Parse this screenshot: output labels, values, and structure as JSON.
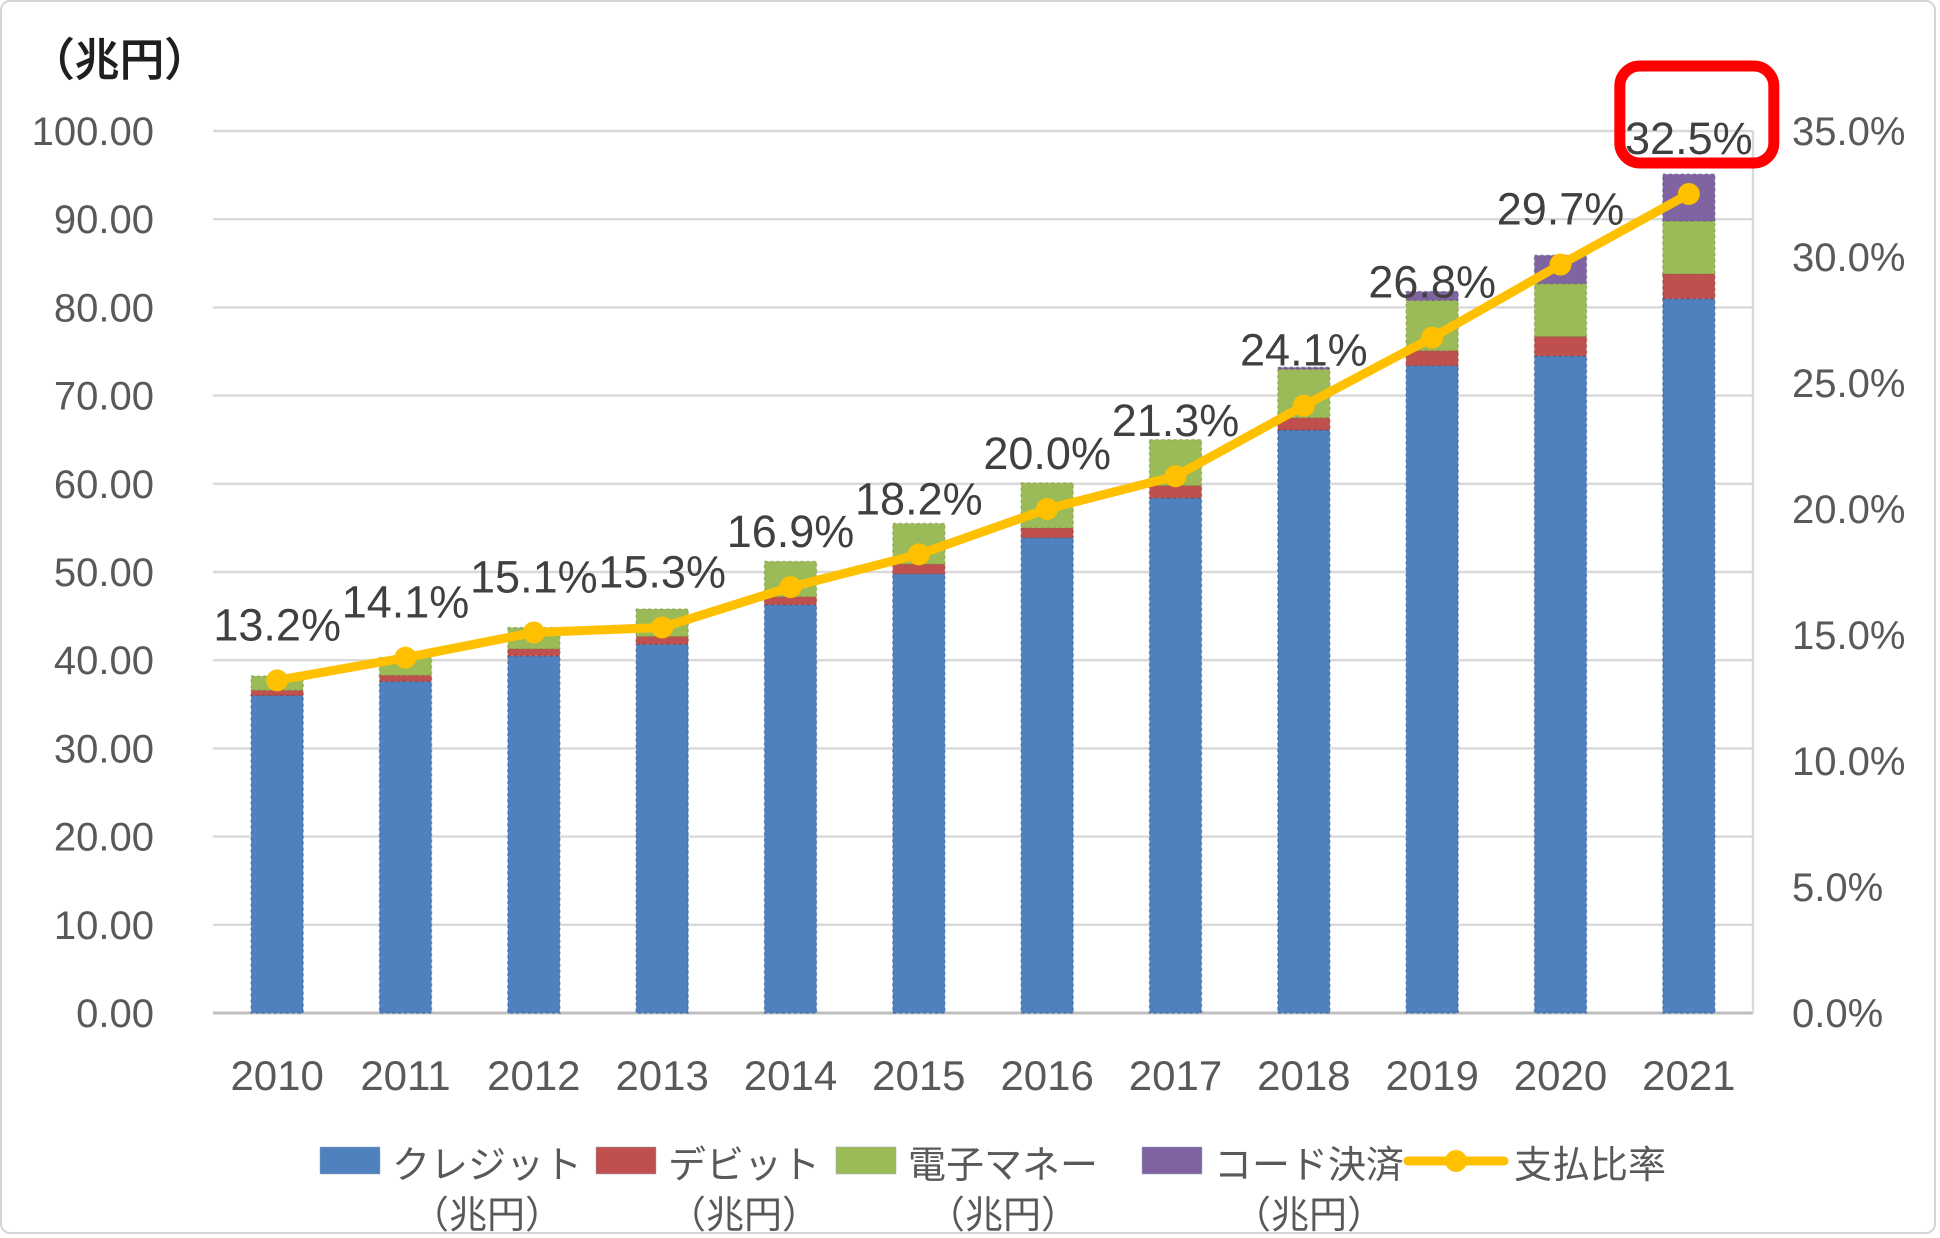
{
  "axis_title_left": "（兆円）",
  "chart_data": {
    "type": "bar+line",
    "title": "",
    "categories": [
      "2010",
      "2011",
      "2012",
      "2013",
      "2014",
      "2015",
      "2016",
      "2017",
      "2018",
      "2019",
      "2020",
      "2021"
    ],
    "series": [
      {
        "name": "クレジット（兆円）",
        "type": "bar",
        "color": "#4E81BD",
        "border": "#2f5a8f",
        "values": [
          36.0,
          37.6,
          40.5,
          41.8,
          46.3,
          49.8,
          53.9,
          58.4,
          66.1,
          73.4,
          74.5,
          81.0
        ]
      },
      {
        "name": "デビット（兆円）",
        "type": "bar",
        "color": "#C0504D",
        "border": "#8f3b39",
        "values": [
          0.6,
          0.7,
          0.8,
          0.9,
          0.9,
          1.1,
          1.1,
          1.4,
          1.4,
          1.7,
          2.2,
          2.8
        ]
      },
      {
        "name": "電子マネー（兆円）",
        "type": "bar",
        "color": "#9BBB59",
        "border": "#74923c",
        "values": [
          1.6,
          2.0,
          2.4,
          3.1,
          4.0,
          4.6,
          5.1,
          5.2,
          5.5,
          5.7,
          6.0,
          6.0
        ]
      },
      {
        "name": "コード決済（兆円）",
        "type": "bar",
        "color": "#8064A2",
        "border": "#5f4a7d",
        "values": [
          0,
          0,
          0,
          0,
          0,
          0,
          0,
          0,
          0.2,
          1.0,
          3.2,
          5.3
        ]
      },
      {
        "name": "支払比率",
        "type": "line",
        "axis": "right",
        "color": "#FFC000",
        "values": [
          13.2,
          14.1,
          15.1,
          15.3,
          16.9,
          18.2,
          20.0,
          21.3,
          24.1,
          26.8,
          29.7,
          32.5
        ],
        "point_labels": [
          "13.2%",
          "14.1%",
          "15.1%",
          "15.3%",
          "16.9%",
          "18.2%",
          "20.0%",
          "21.3%",
          "24.1%",
          "26.8%",
          "29.7%",
          "32.5%"
        ]
      }
    ],
    "left_axis": {
      "min": 0,
      "max": 100,
      "step": 10,
      "tick_labels": [
        "100.00",
        "90.00",
        "80.00",
        "70.00",
        "60.00",
        "50.00",
        "40.00",
        "30.00",
        "20.00",
        "10.00",
        "0.00"
      ]
    },
    "right_axis": {
      "min": 0,
      "max": 35,
      "step": 5,
      "tick_labels": [
        "35.0%",
        "30.0%",
        "25.0%",
        "20.0%",
        "15.0%",
        "10.0%",
        "5.0%",
        "0.0%"
      ]
    },
    "grid": true,
    "highlight": {
      "category_index": 11,
      "label": "32.5%",
      "box_color": "#FE0000"
    }
  },
  "legend": {
    "position": "bottom",
    "items": [
      {
        "swatch": "square",
        "color": "#4E81BD",
        "line1": "クレジット",
        "line2": "（兆円）"
      },
      {
        "swatch": "square",
        "color": "#C0504D",
        "line1": "デビット",
        "line2": "（兆円）"
      },
      {
        "swatch": "square",
        "color": "#9BBB59",
        "line1": "電子マネー",
        "line2": "（兆円）"
      },
      {
        "swatch": "square",
        "color": "#8064A2",
        "line1": "コード決済",
        "line2": "（兆円）"
      },
      {
        "swatch": "line-marker",
        "color": "#FFC000",
        "line1": "支払比率",
        "line2": ""
      }
    ]
  },
  "style": {
    "grid_color": "#D9D9D9",
    "axis_line_color": "#BFBFBF",
    "tick_label_color": "#595959",
    "data_label_color": "#404040",
    "year_label_color": "#595959",
    "legend_text_color": "#595959"
  }
}
